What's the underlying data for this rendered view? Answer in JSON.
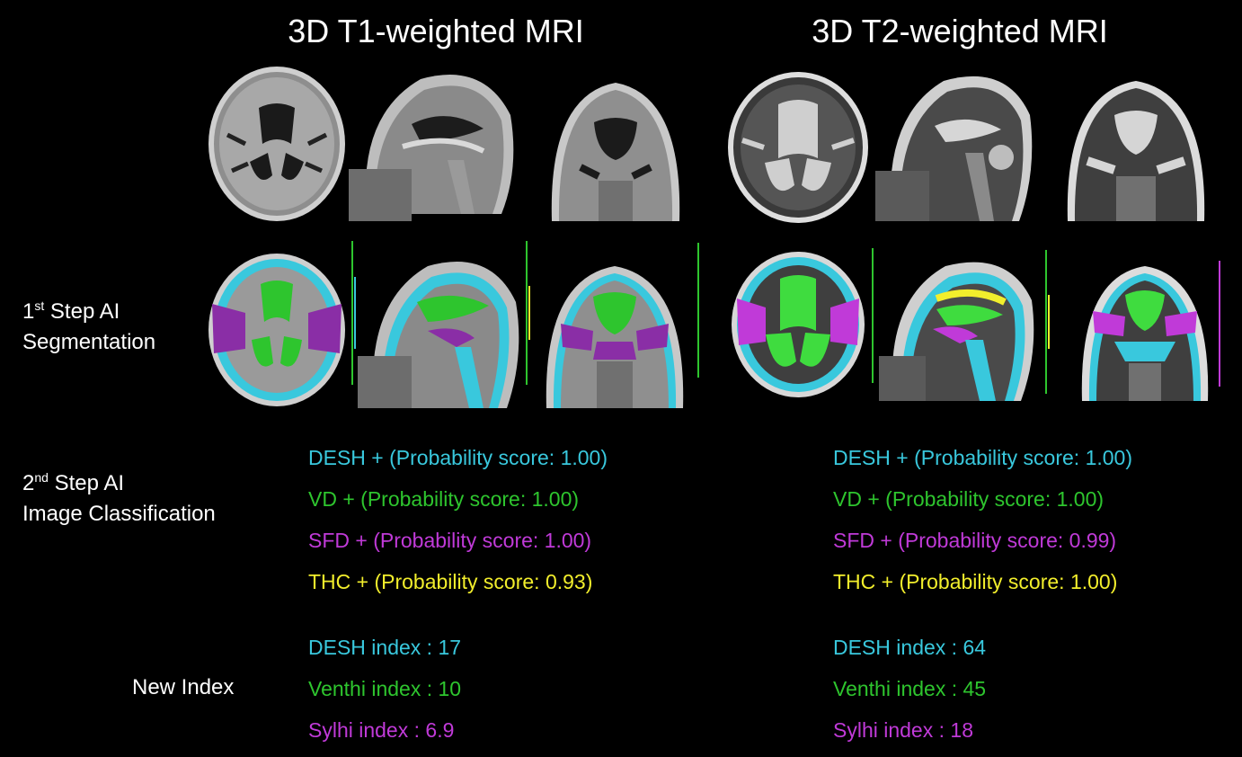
{
  "titles": {
    "t1": "3D T1-weighted MRI",
    "t2": "3D T2-weighted MRI"
  },
  "row_labels": {
    "seg_step_num": "1",
    "seg_step_sup": "st",
    "seg_step_rest": " Step AI",
    "seg_line2": "Segmentation",
    "cls_step_num": "2",
    "cls_step_sup": "nd",
    "cls_step_rest": " Step AI",
    "cls_line2": "Image Classification",
    "index_label": "New Index"
  },
  "colors": {
    "desh": "#39c8dd",
    "vd": "#2ec52e",
    "sfd": "#c03ad8",
    "thc": "#f2ee2c"
  },
  "classification": {
    "t1": [
      "DESH + (Probability score: 1.00)",
      "VD + (Probability score: 1.00)",
      "SFD + (Probability score: 1.00)",
      "THC + (Probability score: 0.93)"
    ],
    "t2": [
      "DESH + (Probability score: 1.00)",
      "VD + (Probability score: 1.00)",
      "SFD + (Probability score: 0.99)",
      "THC + (Probability score: 1.00)"
    ]
  },
  "indices": {
    "t1": [
      "DESH index : 17",
      "Venthi index : 10",
      "Sylhi index : 6.9"
    ],
    "t2": [
      "DESH index : 64",
      "Venthi index : 45",
      "Sylhi index : 18"
    ]
  }
}
